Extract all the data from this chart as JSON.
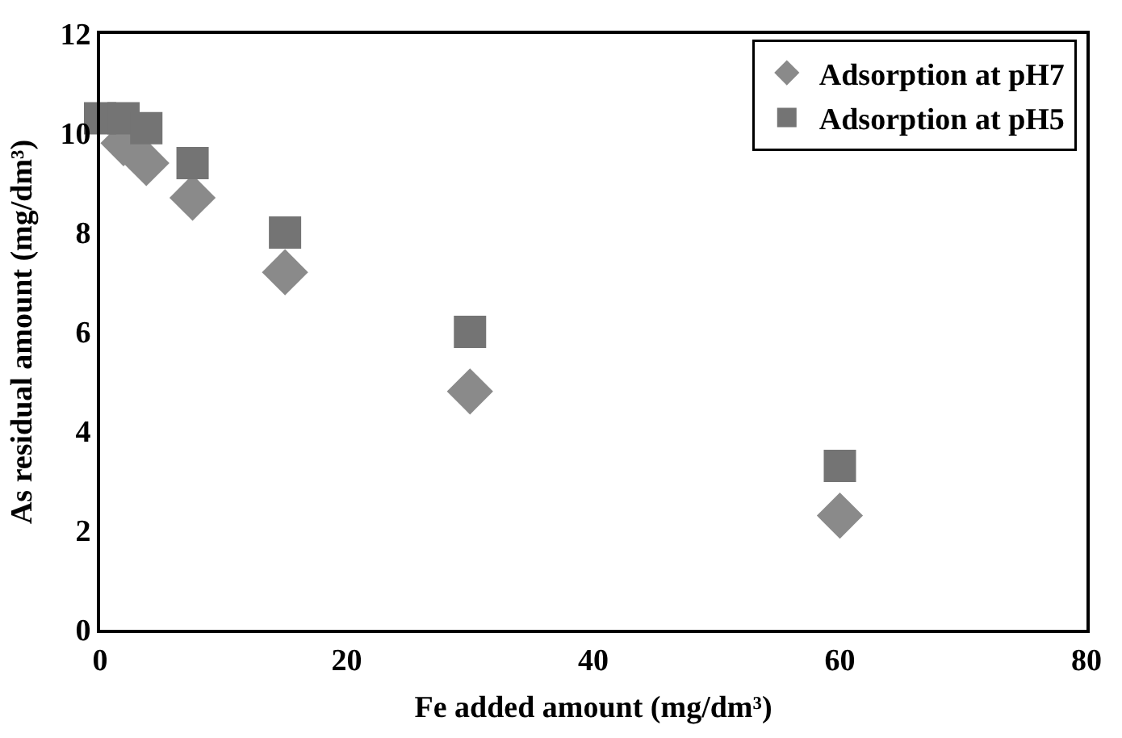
{
  "chart_data": {
    "type": "scatter",
    "xlabel": "Fe added amount (mg/dm³)",
    "ylabel": "As residual amount (mg/dm³)",
    "xlim": [
      0,
      80
    ],
    "xticks": [
      0,
      20,
      40,
      60,
      80
    ],
    "ylim": [
      0,
      12
    ],
    "yticks": [
      0,
      2,
      4,
      6,
      8,
      10,
      12
    ],
    "grid": false,
    "legend": "top right",
    "series": [
      {
        "name": "Adsorption at pH7",
        "color": "#8a8a8a",
        "marker": "diamond",
        "x": [
          1.9,
          3.75,
          7.5,
          15,
          30,
          60
        ],
        "values": [
          9.8,
          9.4,
          8.7,
          7.2,
          4.8,
          2.3
        ]
      },
      {
        "name": "Adsorption at pH5",
        "color": "#747474",
        "marker": "square",
        "x": [
          0,
          1.9,
          3.75,
          7.5,
          15,
          30,
          60
        ],
        "values": [
          10.3,
          10.3,
          10.1,
          9.4,
          8.0,
          6.0,
          3.3
        ]
      }
    ]
  }
}
